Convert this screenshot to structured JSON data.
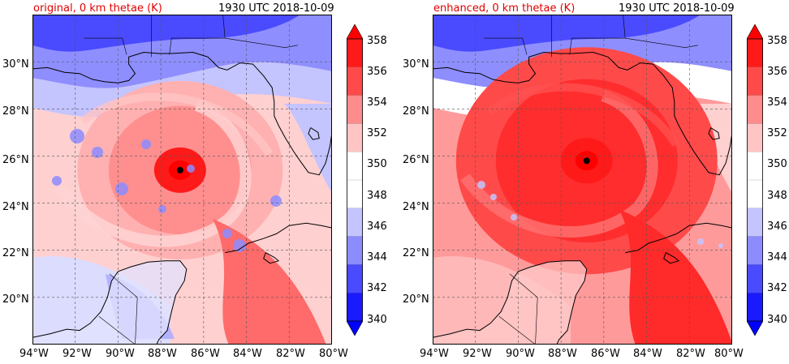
{
  "figure": {
    "panels": [
      {
        "id": "original",
        "title_left": "original, 0 km thetae (K)",
        "title_right": "1930 UTC 2018-10-09",
        "storm_center": {
          "lon": -87.1,
          "lat": 25.4
        }
      },
      {
        "id": "enhanced",
        "title_left": "enhanced, 0 km thetae (K)",
        "title_right": "1930 UTC 2018-10-09",
        "storm_center": {
          "lon": -86.8,
          "lat": 25.8
        }
      }
    ],
    "lat_labels": [
      "30°N",
      "28°N",
      "26°N",
      "24°N",
      "22°N",
      "20°N"
    ],
    "lon_labels": [
      "94°W",
      "92°W",
      "90°W",
      "88°W",
      "86°W",
      "84°W",
      "82°W",
      "80°W"
    ],
    "colorbar": {
      "ticks": [
        "358",
        "356",
        "354",
        "352",
        "350",
        "348",
        "346",
        "344",
        "342",
        "340"
      ],
      "levels": [
        340,
        342,
        344,
        346,
        348,
        350,
        352,
        354,
        356,
        358
      ],
      "colors": [
        "#1a1aff",
        "#4a4aff",
        "#8c8cff",
        "#c4c4ff",
        "#ffffff",
        "#ffffff",
        "#ffc4c4",
        "#ff8c8c",
        "#ff4a4a",
        "#ff1a1a"
      ],
      "under_color": "#0000ff",
      "over_color": "#ff0000"
    },
    "map_extent": {
      "lon_min": -94,
      "lon_max": -80,
      "lat_min": 18,
      "lat_max": 32
    }
  }
}
